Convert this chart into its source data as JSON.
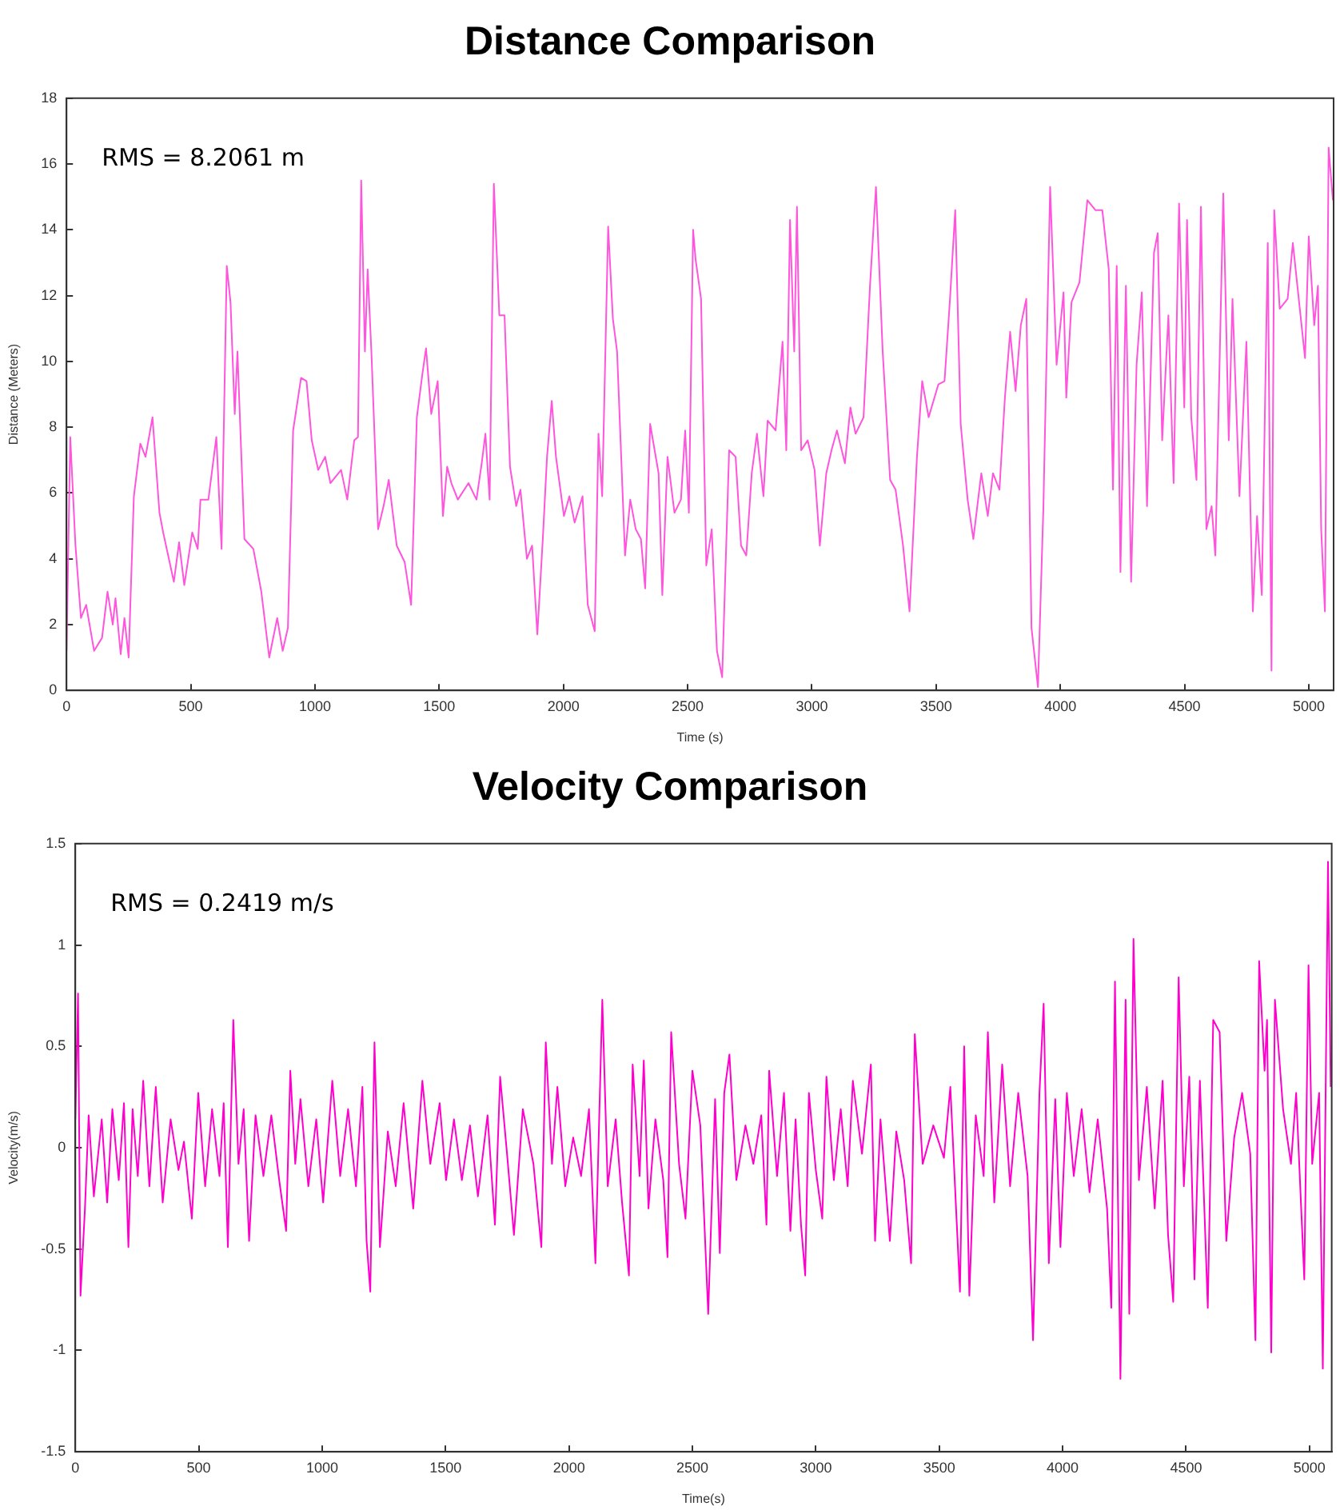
{
  "chart_data": [
    {
      "type": "line",
      "title": "Distance Comparison",
      "xlabel": "Time (s)",
      "ylabel": "Distance (Meters)",
      "annotations": [
        "RMS = 8.2061 m"
      ],
      "color": "#ff55dd",
      "grid": false,
      "xlim": [
        0,
        5100
      ],
      "xticks": [
        0,
        500,
        1000,
        1500,
        2000,
        2500,
        3000,
        3500,
        4000,
        4500,
        5000
      ],
      "ylim": [
        0,
        18
      ],
      "yticks": [
        0,
        2,
        4,
        6,
        8,
        10,
        12,
        14,
        16,
        18
      ],
      "x": [
        0,
        15,
        36,
        58,
        79,
        111,
        143,
        165,
        186,
        197,
        218,
        233,
        250,
        271,
        297,
        318,
        346,
        374,
        389,
        432,
        453,
        474,
        506,
        528,
        539,
        571,
        603,
        624,
        645,
        660,
        677,
        688,
        716,
        752,
        784,
        816,
        848,
        870,
        891,
        912,
        944,
        966,
        987,
        1013,
        1041,
        1062,
        1105,
        1130,
        1158,
        1173,
        1186,
        1201,
        1212,
        1227,
        1254,
        1276,
        1297,
        1329,
        1361,
        1387,
        1410,
        1432,
        1447,
        1468,
        1494,
        1515,
        1532,
        1549,
        1575,
        1618,
        1650,
        1671,
        1686,
        1703,
        1720,
        1742,
        1763,
        1785,
        1810,
        1827,
        1853,
        1874,
        1895,
        1917,
        1934,
        1953,
        1970,
        2002,
        2024,
        2045,
        2077,
        2098,
        2126,
        2141,
        2156,
        2180,
        2199,
        2216,
        2248,
        2269,
        2291,
        2312,
        2329,
        2349,
        2383,
        2398,
        2419,
        2447,
        2473,
        2490,
        2505,
        2522,
        2532,
        2554,
        2575,
        2597,
        2618,
        2639,
        2667,
        2693,
        2715,
        2736,
        2758,
        2779,
        2805,
        2822,
        2854,
        2882,
        2897,
        2912,
        2929,
        2940,
        2957,
        2983,
        3011,
        3032,
        3058,
        3079,
        3101,
        3133,
        3155,
        3176,
        3208,
        3234,
        3258,
        3285,
        3315,
        3337,
        3367,
        3393,
        3423,
        3444,
        3470,
        3509,
        3534,
        3556,
        3577,
        3599,
        3627,
        3650,
        3682,
        3708,
        3729,
        3755,
        3777,
        3798,
        3820,
        3841,
        3863,
        3884,
        3910,
        3932,
        3959,
        3985,
        4013,
        4024,
        4045,
        4077,
        4109,
        4141,
        4169,
        4195,
        4212,
        4227,
        4242,
        4264,
        4285,
        4307,
        4328,
        4349,
        4377,
        4392,
        4410,
        4435,
        4456,
        4478,
        4499,
        4510,
        4527,
        4548,
        4566,
        4588,
        4609,
        4624,
        4656,
        4678,
        4693,
        4721,
        4749,
        4775,
        4792,
        4811,
        4835,
        4850,
        4861,
        4883,
        4915,
        4936,
        4964,
        4985,
        5000,
        5022,
        5037,
        5050,
        5065,
        5080,
        5097
      ],
      "values": [
        1.2,
        7.7,
        4.4,
        2.2,
        2.6,
        1.2,
        1.6,
        3.0,
        2.0,
        2.8,
        1.1,
        2.2,
        1.0,
        5.9,
        7.5,
        7.1,
        8.3,
        5.4,
        4.8,
        3.3,
        4.5,
        3.2,
        4.8,
        4.3,
        5.8,
        5.8,
        7.7,
        4.3,
        12.9,
        11.8,
        8.4,
        10.3,
        4.6,
        4.3,
        3.0,
        1.0,
        2.2,
        1.2,
        1.9,
        7.9,
        9.5,
        9.4,
        7.6,
        6.7,
        7.1,
        6.3,
        6.7,
        5.8,
        7.6,
        7.7,
        15.5,
        10.3,
        12.8,
        10.3,
        4.9,
        5.6,
        6.4,
        4.4,
        3.9,
        2.6,
        8.3,
        9.6,
        10.4,
        8.4,
        9.4,
        5.3,
        6.8,
        6.3,
        5.8,
        6.3,
        5.8,
        6.9,
        7.8,
        5.8,
        15.4,
        11.4,
        11.4,
        6.8,
        5.6,
        6.1,
        4.0,
        4.4,
        1.7,
        4.6,
        7.1,
        8.8,
        7.1,
        5.3,
        5.9,
        5.1,
        5.9,
        2.6,
        1.8,
        7.8,
        5.9,
        14.1,
        11.3,
        10.3,
        4.1,
        5.8,
        4.9,
        4.6,
        3.1,
        8.1,
        6.6,
        2.9,
        7.1,
        5.4,
        5.8,
        7.9,
        5.4,
        14.0,
        13.1,
        11.9,
        3.8,
        4.9,
        1.2,
        0.4,
        7.3,
        7.1,
        4.4,
        4.1,
        6.6,
        7.8,
        5.9,
        8.2,
        7.9,
        10.6,
        7.3,
        14.3,
        10.3,
        14.7,
        7.3,
        7.6,
        6.7,
        4.4,
        6.6,
        7.3,
        7.9,
        6.9,
        8.6,
        7.8,
        8.3,
        12.3,
        15.3,
        10.3,
        6.4,
        6.1,
        4.4,
        2.4,
        7.1,
        9.4,
        8.3,
        9.3,
        9.4,
        11.9,
        14.6,
        8.1,
        5.8,
        4.6,
        6.6,
        5.3,
        6.6,
        6.1,
        8.9,
        10.9,
        9.1,
        11.1,
        11.9,
        1.9,
        0.1,
        5.6,
        15.3,
        9.9,
        12.1,
        8.9,
        11.8,
        12.4,
        14.9,
        14.6,
        14.6,
        12.8,
        6.1,
        12.9,
        3.6,
        12.3,
        3.3,
        9.9,
        12.1,
        5.6,
        13.3,
        13.9,
        7.6,
        11.4,
        6.3,
        14.8,
        8.6,
        14.3,
        8.3,
        6.4,
        14.7,
        4.9,
        5.6,
        4.1,
        15.1,
        7.6,
        11.9,
        5.9,
        10.6,
        2.4,
        5.3,
        2.9,
        13.6,
        0.6,
        14.6,
        11.6,
        11.9,
        13.6,
        11.6,
        10.1,
        13.8,
        11.1,
        12.3,
        4.9,
        2.4,
        16.5,
        14.9
      ]
    },
    {
      "type": "line",
      "title": "Velocity Comparison",
      "xlabel": "Time(s)",
      "ylabel": "Velocity(m/s)",
      "annotations": [
        "RMS = 0.2419 m/s"
      ],
      "color": "#ff00cc",
      "grid": false,
      "xlim": [
        0,
        5090
      ],
      "xticks": [
        0,
        500,
        1000,
        1500,
        2000,
        2500,
        3000,
        3500,
        4000,
        4500,
        5000
      ],
      "ylim": [
        -1.5,
        1.5
      ],
      "yticks": [
        -1.5,
        -1,
        -0.5,
        0,
        0.5,
        1,
        1.5
      ],
      "x": [
        0,
        11,
        21,
        39,
        54,
        75,
        107,
        129,
        150,
        176,
        197,
        215,
        232,
        253,
        275,
        300,
        326,
        354,
        386,
        418,
        440,
        472,
        498,
        526,
        554,
        584,
        601,
        618,
        640,
        661,
        682,
        704,
        730,
        762,
        794,
        826,
        854,
        871,
        891,
        912,
        944,
        976,
        1004,
        1041,
        1073,
        1105,
        1137,
        1163,
        1180,
        1195,
        1212,
        1234,
        1266,
        1298,
        1330,
        1369,
        1406,
        1438,
        1476,
        1502,
        1534,
        1566,
        1599,
        1631,
        1670,
        1700,
        1721,
        1749,
        1777,
        1813,
        1856,
        1888,
        1906,
        1931,
        1953,
        1985,
        2017,
        2049,
        2081,
        2107,
        2135,
        2157,
        2189,
        2215,
        2243,
        2258,
        2286,
        2303,
        2322,
        2350,
        2382,
        2399,
        2414,
        2446,
        2472,
        2500,
        2532,
        2564,
        2592,
        2611,
        2629,
        2650,
        2678,
        2715,
        2747,
        2779,
        2800,
        2811,
        2843,
        2871,
        2897,
        2918,
        2940,
        2957,
        2972,
        3000,
        3026,
        3043,
        3073,
        3101,
        3129,
        3150,
        3187,
        3223,
        3240,
        3262,
        3300,
        3326,
        3358,
        3386,
        3401,
        3433,
        3476,
        3519,
        3545,
        3584,
        3601,
        3622,
        3648,
        3680,
        3697,
        3723,
        3755,
        3787,
        3820,
        3858,
        3880,
        3906,
        3923,
        3944,
        3970,
        3991,
        4017,
        4045,
        4077,
        4109,
        4142,
        4180,
        4197,
        4212,
        4234,
        4255,
        4270,
        4287,
        4309,
        4341,
        4373,
        4405,
        4427,
        4448,
        4470,
        4491,
        4513,
        4534,
        4556,
        4588,
        4610,
        4636,
        4663,
        4695,
        4727,
        4760,
        4781,
        4796,
        4818,
        4828,
        4845,
        4860,
        4893,
        4925,
        4946,
        4979,
        4996,
        5011,
        5039,
        5054,
        5075,
        5086
      ],
      "values": [
        0.14,
        0.76,
        -0.73,
        -0.3,
        0.16,
        -0.24,
        0.14,
        -0.27,
        0.19,
        -0.16,
        0.22,
        -0.49,
        0.19,
        -0.14,
        0.33,
        -0.19,
        0.3,
        -0.27,
        0.14,
        -0.11,
        0.03,
        -0.35,
        0.27,
        -0.19,
        0.19,
        -0.14,
        0.22,
        -0.49,
        0.63,
        -0.08,
        0.19,
        -0.46,
        0.16,
        -0.14,
        0.16,
        -0.16,
        -0.41,
        0.38,
        -0.08,
        0.24,
        -0.19,
        0.14,
        -0.27,
        0.33,
        -0.14,
        0.19,
        -0.19,
        0.3,
        -0.46,
        -0.71,
        0.52,
        -0.49,
        0.08,
        -0.19,
        0.22,
        -0.3,
        0.33,
        -0.08,
        0.22,
        -0.16,
        0.14,
        -0.16,
        0.11,
        -0.24,
        0.16,
        -0.38,
        0.35,
        -0.03,
        -0.43,
        0.19,
        -0.08,
        -0.49,
        0.52,
        -0.08,
        0.3,
        -0.19,
        0.05,
        -0.14,
        0.19,
        -0.57,
        0.73,
        -0.19,
        0.14,
        -0.27,
        -0.63,
        0.41,
        -0.14,
        0.43,
        -0.3,
        0.14,
        -0.16,
        -0.54,
        0.57,
        -0.08,
        -0.35,
        0.38,
        0.11,
        -0.82,
        0.24,
        -0.52,
        0.27,
        0.46,
        -0.16,
        0.11,
        -0.08,
        0.16,
        -0.38,
        0.38,
        -0.14,
        0.27,
        -0.41,
        0.14,
        -0.38,
        -0.63,
        0.27,
        -0.11,
        -0.35,
        0.35,
        -0.16,
        0.19,
        -0.19,
        0.33,
        -0.03,
        0.41,
        -0.46,
        0.14,
        -0.46,
        0.08,
        -0.16,
        -0.57,
        0.56,
        -0.08,
        0.11,
        -0.05,
        0.3,
        -0.71,
        0.5,
        -0.73,
        0.16,
        -0.14,
        0.57,
        -0.27,
        0.41,
        -0.19,
        0.27,
        -0.14,
        -0.95,
        0.27,
        0.71,
        -0.57,
        0.24,
        -0.49,
        0.27,
        -0.14,
        0.19,
        -0.22,
        0.14,
        -0.3,
        -0.79,
        0.82,
        -1.14,
        0.73,
        -0.82,
        1.03,
        -0.16,
        0.3,
        -0.3,
        0.33,
        -0.43,
        -0.76,
        0.84,
        -0.19,
        0.35,
        -0.65,
        0.33,
        -0.79,
        0.63,
        0.57,
        -0.46,
        0.05,
        0.27,
        -0.03,
        -0.95,
        0.92,
        0.38,
        0.63,
        -1.01,
        0.73,
        0.19,
        -0.08,
        0.27,
        -0.65,
        0.9,
        -0.08,
        0.27,
        -1.09,
        1.41,
        0.3
      ]
    }
  ]
}
